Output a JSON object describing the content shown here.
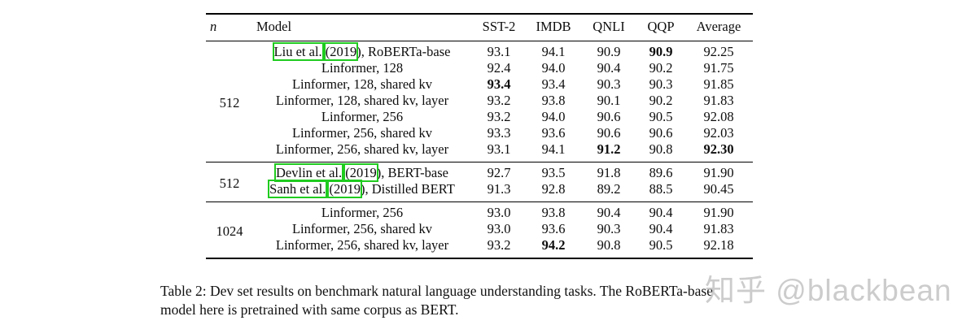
{
  "page": {
    "background": "#ffffff"
  },
  "table": {
    "headers": [
      "n",
      "Model",
      "SST-2",
      "IMDB",
      "QNLI",
      "QQP",
      "Average"
    ],
    "citation_box_color": "#1fcb1f",
    "groups": [
      {
        "n": "512",
        "rows": [
          {
            "model": [
              {
                "t": "Liu et al.",
                "box": true
              },
              {
                "t": " ",
                "box": false
              },
              {
                "t": "(2019",
                "box": true
              },
              {
                "t": "), RoBERTa-base",
                "box": false
              }
            ],
            "scores": [
              {
                "v": "93.1"
              },
              {
                "v": "94.1"
              },
              {
                "v": "90.9"
              },
              {
                "v": "90.9",
                "b": true
              },
              {
                "v": "92.25"
              }
            ]
          },
          {
            "model": [
              {
                "t": "Linformer, 128",
                "box": false
              }
            ],
            "scores": [
              {
                "v": "92.4"
              },
              {
                "v": "94.0"
              },
              {
                "v": "90.4"
              },
              {
                "v": "90.2"
              },
              {
                "v": "91.75"
              }
            ]
          },
          {
            "model": [
              {
                "t": "Linformer, 128, shared kv",
                "box": false
              }
            ],
            "scores": [
              {
                "v": "93.4",
                "b": true
              },
              {
                "v": "93.4"
              },
              {
                "v": "90.3"
              },
              {
                "v": "90.3"
              },
              {
                "v": "91.85"
              }
            ]
          },
          {
            "model": [
              {
                "t": "Linformer, 128, shared kv, layer",
                "box": false
              }
            ],
            "scores": [
              {
                "v": "93.2"
              },
              {
                "v": "93.8"
              },
              {
                "v": "90.1"
              },
              {
                "v": "90.2"
              },
              {
                "v": "91.83"
              }
            ]
          },
          {
            "model": [
              {
                "t": "Linformer, 256",
                "box": false
              }
            ],
            "scores": [
              {
                "v": "93.2"
              },
              {
                "v": "94.0"
              },
              {
                "v": "90.6"
              },
              {
                "v": "90.5"
              },
              {
                "v": "92.08"
              }
            ]
          },
          {
            "model": [
              {
                "t": "Linformer, 256, shared kv",
                "box": false
              }
            ],
            "scores": [
              {
                "v": "93.3"
              },
              {
                "v": "93.6"
              },
              {
                "v": "90.6"
              },
              {
                "v": "90.6"
              },
              {
                "v": "92.03"
              }
            ]
          },
          {
            "model": [
              {
                "t": "Linformer, 256, shared kv, layer",
                "box": false
              }
            ],
            "scores": [
              {
                "v": "93.1"
              },
              {
                "v": "94.1"
              },
              {
                "v": "91.2",
                "b": true
              },
              {
                "v": "90.8"
              },
              {
                "v": "92.30",
                "b": true
              }
            ]
          }
        ]
      },
      {
        "n": "512",
        "rows": [
          {
            "model": [
              {
                "t": "Devlin et al.",
                "box": true
              },
              {
                "t": " ",
                "box": false
              },
              {
                "t": "(2019",
                "box": true
              },
              {
                "t": "), BERT-base",
                "box": false
              }
            ],
            "scores": [
              {
                "v": "92.7"
              },
              {
                "v": "93.5"
              },
              {
                "v": "91.8"
              },
              {
                "v": "89.6"
              },
              {
                "v": "91.90"
              }
            ]
          },
          {
            "model": [
              {
                "t": "Sanh et al.",
                "box": true
              },
              {
                "t": " ",
                "box": false
              },
              {
                "t": "(2019",
                "box": true
              },
              {
                "t": "), Distilled BERT",
                "box": false
              }
            ],
            "scores": [
              {
                "v": "91.3"
              },
              {
                "v": "92.8"
              },
              {
                "v": "89.2"
              },
              {
                "v": "88.5"
              },
              {
                "v": "90.45"
              }
            ]
          }
        ]
      },
      {
        "n": "1024",
        "rows": [
          {
            "model": [
              {
                "t": "Linformer, 256",
                "box": false
              }
            ],
            "scores": [
              {
                "v": "93.0"
              },
              {
                "v": "93.8"
              },
              {
                "v": "90.4"
              },
              {
                "v": "90.4"
              },
              {
                "v": "91.90"
              }
            ]
          },
          {
            "model": [
              {
                "t": "Linformer, 256, shared kv",
                "box": false
              }
            ],
            "scores": [
              {
                "v": "93.0"
              },
              {
                "v": "93.6"
              },
              {
                "v": "90.3"
              },
              {
                "v": "90.4"
              },
              {
                "v": "91.83"
              }
            ]
          },
          {
            "model": [
              {
                "t": "Linformer, 256, shared kv, layer",
                "box": false
              }
            ],
            "scores": [
              {
                "v": "93.2"
              },
              {
                "v": "94.2",
                "b": true
              },
              {
                "v": "90.8"
              },
              {
                "v": "90.5"
              },
              {
                "v": "92.18"
              }
            ]
          }
        ]
      }
    ]
  },
  "caption": {
    "lines": [
      "Table 2: Dev set results on benchmark natural language understanding tasks. The RoBERTa-base",
      "model here is pretrained with same corpus as BERT."
    ]
  },
  "watermark": {
    "text": "知乎 @blackbean",
    "color": "#c2c2c2"
  }
}
